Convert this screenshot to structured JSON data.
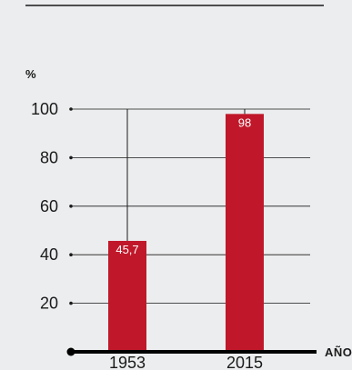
{
  "chart_data": {
    "type": "bar",
    "unit_label": "%",
    "xlabel": "AÑOS",
    "categories": [
      "1953",
      "2015"
    ],
    "values": [
      45.7,
      98
    ],
    "value_labels": [
      "45,7",
      "98"
    ],
    "yticks": [
      20,
      40,
      60,
      80,
      100
    ],
    "ylim": [
      0,
      100
    ],
    "grid": true,
    "bar_color": "#c0182a",
    "background_color": "#ecedee"
  }
}
